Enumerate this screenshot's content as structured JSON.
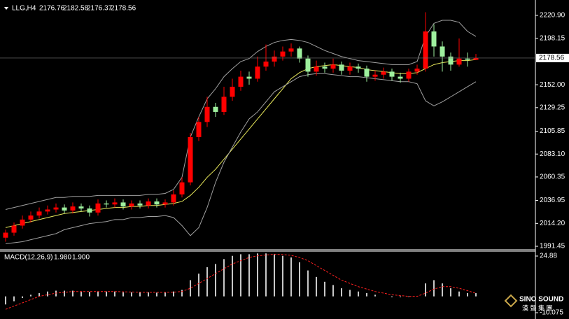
{
  "chart_data": [
    {
      "type": "candlestick",
      "title": "LLG,H4",
      "open": [
        2000,
        2005,
        2012,
        2018,
        2022,
        2026,
        2028,
        2030,
        2027,
        2031,
        2029,
        2025,
        2034,
        2033,
        2035,
        2031,
        2034,
        2032,
        2036,
        2033,
        2035,
        2043,
        2055,
        2100,
        2115,
        2130,
        2125,
        2140,
        2150,
        2160,
        2158,
        2170,
        2175,
        2180,
        2185,
        2188,
        2178,
        2165,
        2170,
        2168,
        2172,
        2166,
        2170,
        2168,
        2160,
        2162,
        2165,
        2160,
        2158,
        2165,
        2168,
        2205,
        2190,
        2180,
        2172,
        2178,
        2176.76
      ],
      "high": [
        2008,
        2015,
        2022,
        2026,
        2030,
        2032,
        2034,
        2033,
        2035,
        2034,
        2032,
        2038,
        2037,
        2039,
        2038,
        2037,
        2037,
        2039,
        2039,
        2038,
        2047,
        2060,
        2104,
        2120,
        2140,
        2134,
        2150,
        2158,
        2166,
        2165,
        2180,
        2192,
        2186,
        2190,
        2193,
        2190,
        2181,
        2176,
        2174,
        2178,
        2175,
        2174,
        2173,
        2171,
        2166,
        2169,
        2168,
        2164,
        2168,
        2172,
        2224,
        2212,
        2195,
        2184,
        2198,
        2184,
        2182.58
      ],
      "low": [
        1996,
        2002,
        2009,
        2015,
        2019,
        2023,
        2025,
        2024,
        2024,
        2026,
        2021,
        2022,
        2030,
        2030,
        2028,
        2028,
        2029,
        2029,
        2030,
        2030,
        2032,
        2040,
        2052,
        2096,
        2110,
        2120,
        2122,
        2136,
        2146,
        2152,
        2155,
        2166,
        2170,
        2176,
        2180,
        2174,
        2160,
        2161,
        2164,
        2164,
        2162,
        2162,
        2164,
        2155,
        2156,
        2158,
        2156,
        2154,
        2155,
        2162,
        2165,
        2180,
        2165,
        2166,
        2170,
        2170,
        2176.37
      ],
      "close": [
        2005,
        2012,
        2018,
        2022,
        2026,
        2028,
        2030,
        2027,
        2031,
        2029,
        2025,
        2034,
        2033,
        2035,
        2031,
        2034,
        2032,
        2036,
        2033,
        2035,
        2043,
        2055,
        2100,
        2115,
        2130,
        2125,
        2140,
        2150,
        2160,
        2158,
        2170,
        2175,
        2180,
        2185,
        2188,
        2178,
        2165,
        2170,
        2168,
        2172,
        2166,
        2170,
        2168,
        2160,
        2162,
        2165,
        2160,
        2158,
        2165,
        2168,
        2205,
        2190,
        2180,
        2172,
        2178,
        2176.76,
        2178.56
      ],
      "up_color": "#ff0000",
      "down_color": "#9ef09e",
      "series": [
        {
          "color": "#a0a0a0",
          "values": [
            2028,
            2030,
            2032,
            2034,
            2036,
            2038,
            2040,
            2040,
            2041,
            2041,
            2041,
            2042,
            2042,
            2042,
            2042,
            2042,
            2042,
            2043,
            2043,
            2044,
            2048,
            2060,
            2100,
            2120,
            2138,
            2148,
            2160,
            2168,
            2175,
            2178,
            2185,
            2190,
            2194,
            2196,
            2197,
            2196,
            2194,
            2190,
            2186,
            2183,
            2180,
            2178,
            2176,
            2175,
            2174,
            2173,
            2172,
            2172,
            2172,
            2175,
            2200,
            2213,
            2216,
            2216,
            2214,
            2205,
            2200
          ]
        },
        {
          "color": "#e8e85a",
          "values": [
            2010,
            2012,
            2014,
            2016,
            2018,
            2020,
            2022,
            2024,
            2025,
            2026,
            2027,
            2028,
            2029,
            2030,
            2030,
            2031,
            2031,
            2032,
            2032,
            2033,
            2034,
            2036,
            2042,
            2050,
            2060,
            2068,
            2078,
            2088,
            2098,
            2108,
            2118,
            2128,
            2138,
            2148,
            2158,
            2164,
            2168,
            2170,
            2171,
            2172,
            2171,
            2170,
            2169,
            2167,
            2166,
            2165,
            2164,
            2163,
            2163,
            2164,
            2168,
            2172,
            2174,
            2175,
            2176,
            2176,
            2177
          ]
        },
        {
          "color": "#a0a0a0",
          "values": [
            1994,
            1995,
            1996,
            1998,
            2000,
            2002,
            2004,
            2008,
            2010,
            2012,
            2014,
            2015,
            2016,
            2018,
            2018,
            2020,
            2020,
            2021,
            2021,
            2022,
            2020,
            2012,
            2002,
            2010,
            2030,
            2055,
            2075,
            2090,
            2105,
            2118,
            2125,
            2135,
            2145,
            2150,
            2155,
            2160,
            2162,
            2163,
            2163,
            2162,
            2161,
            2160,
            2160,
            2159,
            2158,
            2157,
            2156,
            2155,
            2155,
            2153,
            2136,
            2131,
            2135,
            2140,
            2145,
            2150,
            2155
          ]
        }
      ],
      "ylim": [
        1989.4,
        2236.2
      ],
      "yticks": [
        {
          "value": 2220.9,
          "label": "2220.90"
        },
        2198.15,
        {
          "value": 2152,
          "label": "2152.00"
        },
        2129.25,
        2105.85,
        {
          "value": 2083.1,
          "label": "2083.10"
        },
        2060.35,
        2036.95,
        {
          "value": 2014.2,
          "label": "2014.20"
        },
        1991.45
      ]
    },
    {
      "type": "macd",
      "title": "MACD(12,26,9)",
      "series": [
        {
          "color": "#c8c8c8",
          "values": [
            -5,
            -3,
            -1,
            1,
            2,
            3,
            3.5,
            3.5,
            3.5,
            3,
            2.8,
            3,
            3,
            3,
            2.5,
            2.5,
            2.5,
            2.5,
            2.3,
            2.5,
            3,
            4,
            10,
            14,
            18,
            20,
            23,
            25,
            26,
            26,
            26.5,
            26.5,
            26,
            25,
            24,
            21,
            16,
            12,
            9,
            7,
            5,
            4,
            3,
            2,
            1,
            0,
            -0.5,
            -0.5,
            -0.3,
            0,
            8,
            10,
            8,
            5,
            3,
            2,
            1.98
          ]
        },
        {
          "color": "#ff2020",
          "values": [
            -8,
            -6,
            -4,
            -2,
            0,
            1,
            2,
            2.5,
            3,
            3,
            3,
            3,
            3,
            3,
            2.8,
            2.7,
            2.6,
            2.5,
            2.5,
            2.5,
            2.6,
            3,
            5,
            8,
            11,
            14,
            17,
            20,
            22,
            24,
            25,
            25.5,
            26,
            25.8,
            25.3,
            24,
            22,
            19,
            16,
            13,
            10,
            8,
            6,
            4.5,
            3,
            2,
            1,
            0.5,
            0,
            0,
            2,
            4.5,
            6,
            6,
            5,
            3.5,
            1.9
          ]
        }
      ],
      "current": [
        {
          "value": 1.98,
          "label": "1.980"
        },
        {
          "value": 1.9,
          "label": "1.900"
        }
      ],
      "ylim": [
        -13.53,
        27.47
      ],
      "yticks": [
        24.88,
        -10.075
      ]
    }
  ],
  "logo": {
    "name": "SINO SOUND",
    "subtitle": "漢 聲 集 團"
  }
}
